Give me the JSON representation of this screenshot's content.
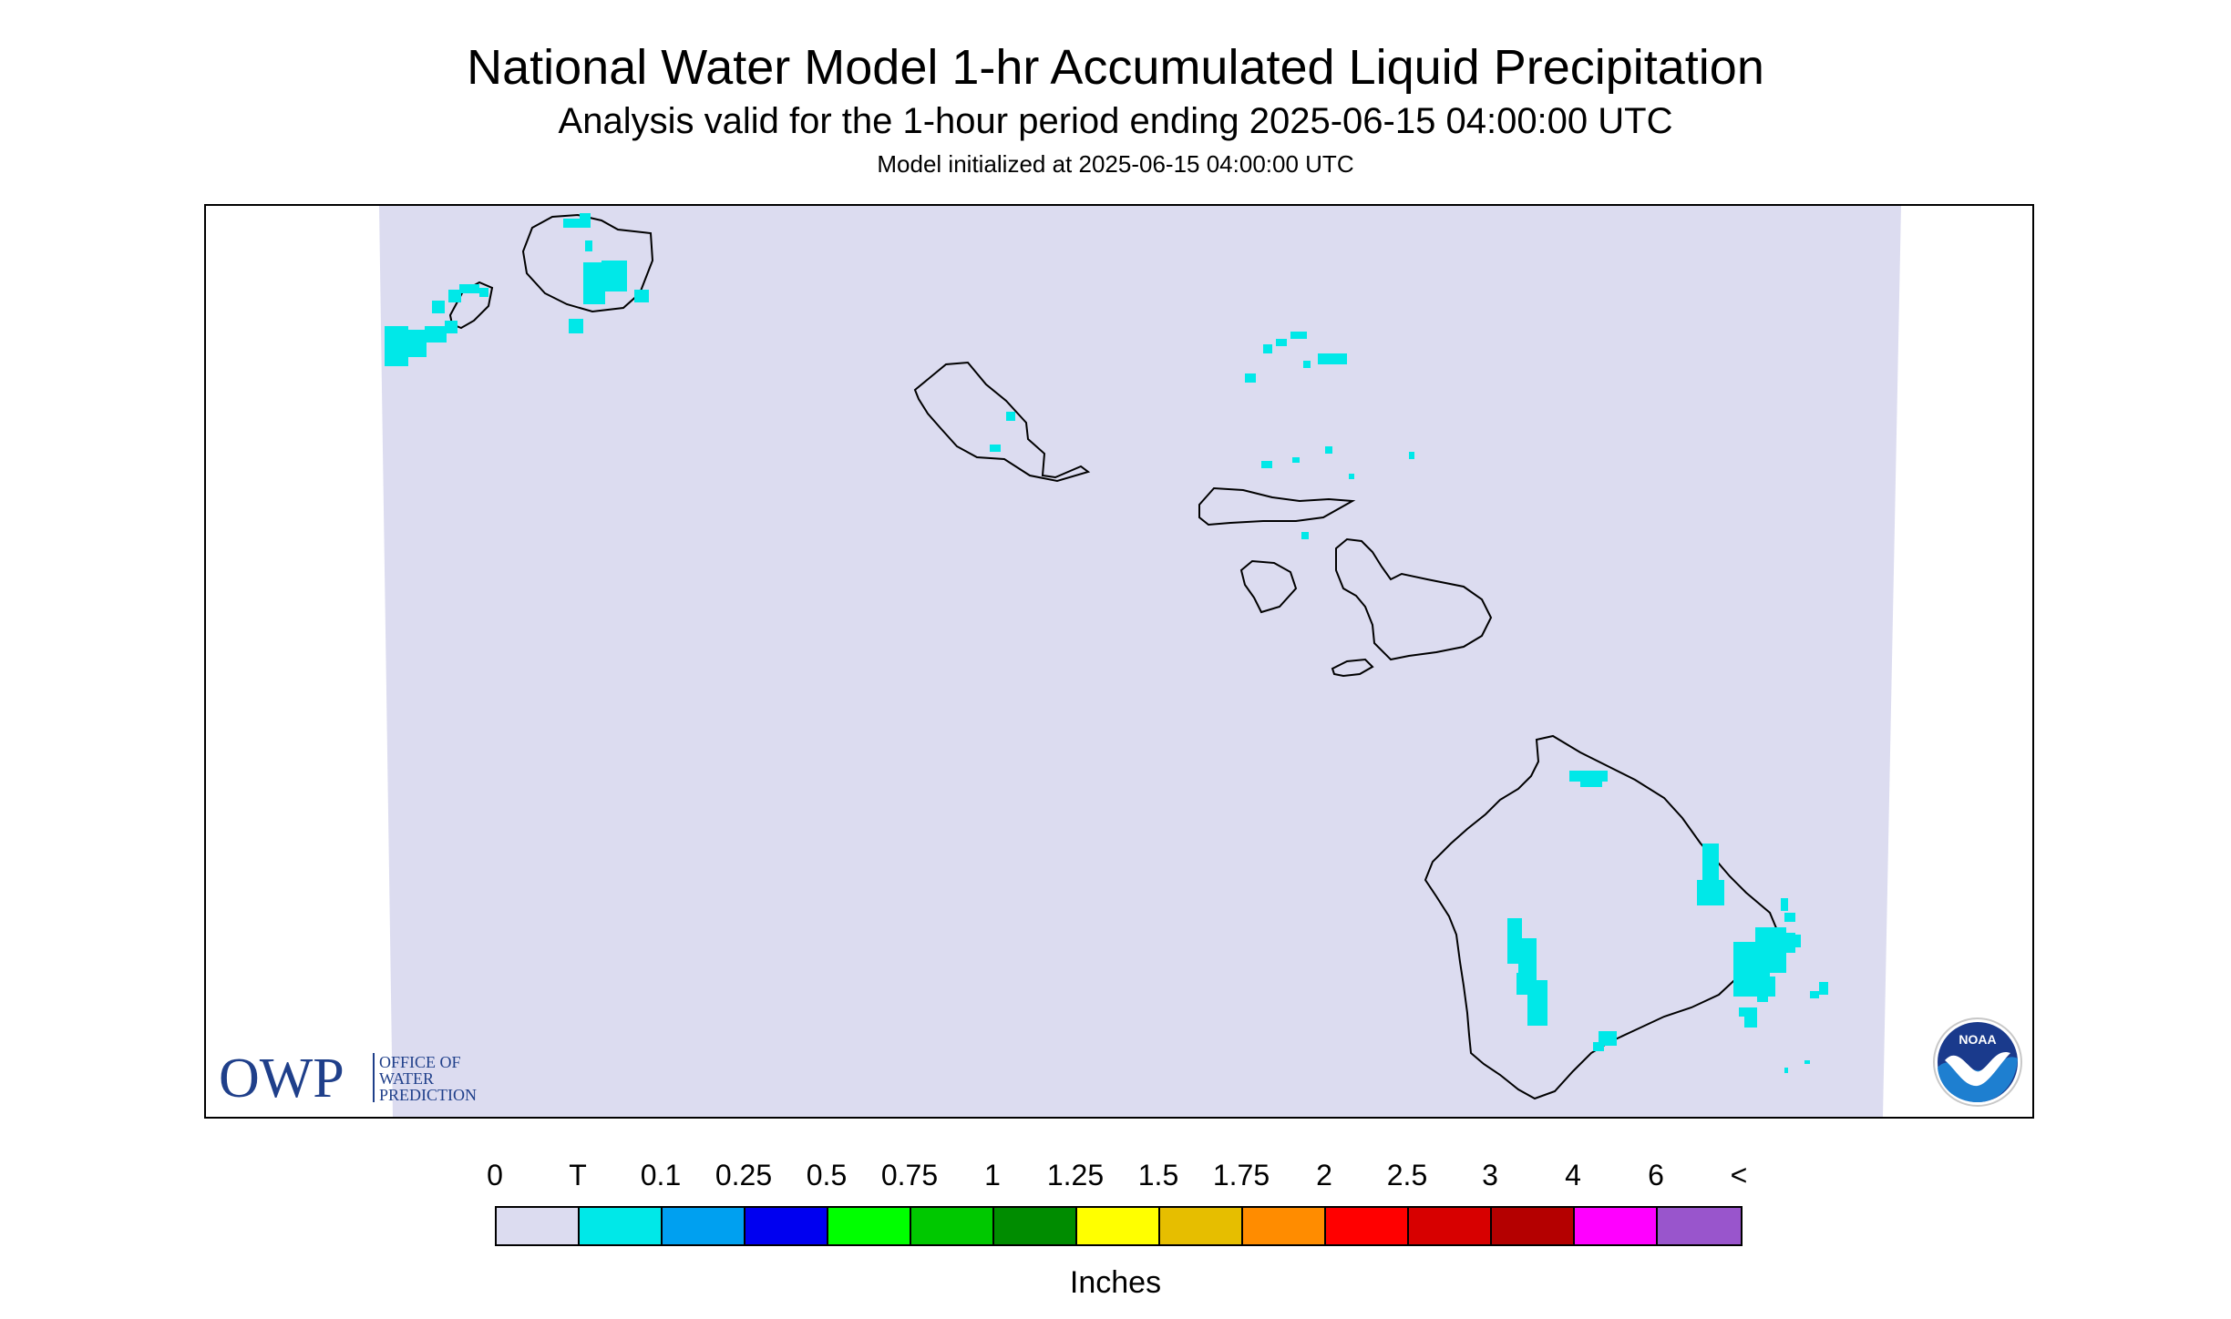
{
  "header": {
    "title": "National Water Model 1-hr Accumulated Liquid Precipitation",
    "subtitle": "Analysis valid for the 1-hour period ending 2025-06-15 04:00:00 UTC",
    "init": "Model initialized at 2025-06-15 04:00:00 UTC"
  },
  "map": {
    "region": "Hawaii",
    "background_color": "#dcdcf0",
    "coast_color": "#000000",
    "precip_color": "#00e8e8"
  },
  "logos": {
    "owp_mark": "OWP",
    "owp_text_line1": "OFFICE OF",
    "owp_text_line2": "WATER",
    "owp_text_line3": "PREDICTION",
    "noaa_text": "NOAA"
  },
  "legend": {
    "unit": "Inches",
    "tick_labels": [
      "0",
      "T",
      "0.1",
      "0.25",
      "0.5",
      "0.75",
      "1",
      "1.25",
      "1.5",
      "1.75",
      "2",
      "2.5",
      "3",
      "4",
      "6",
      "<"
    ],
    "colors": [
      "#dcdcf0",
      "#00e8e8",
      "#00a0f0",
      "#0000f0",
      "#00ff00",
      "#00c800",
      "#008c00",
      "#ffff00",
      "#e6be00",
      "#ff8c00",
      "#ff0000",
      "#d70000",
      "#b40000",
      "#ff00ff",
      "#9955cc"
    ]
  }
}
